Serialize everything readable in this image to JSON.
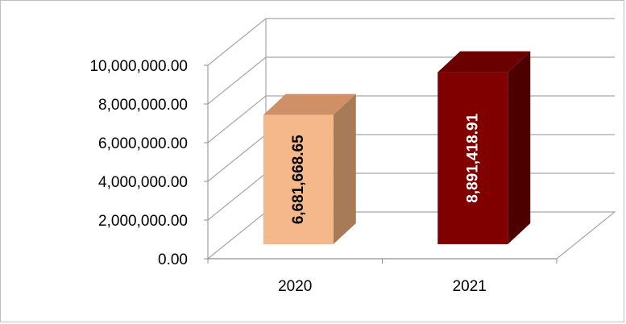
{
  "chart_data": {
    "type": "bar",
    "style": "3d-column",
    "categories": [
      "2020",
      "2021"
    ],
    "values": [
      6681668.65,
      8891418.91
    ],
    "data_labels": [
      "6,681,668.65",
      "8,891,418.91"
    ],
    "colors": {
      "bars": [
        {
          "front": "#f5b88a",
          "side": "#a77b58",
          "top": "#cf9067"
        },
        {
          "front": "#800000",
          "side": "#4d0000",
          "top": "#6b0000"
        }
      ],
      "label_text": [
        "#000000",
        "#ffffff"
      ],
      "gridlines": "#a6a6a6",
      "axis": "#8c8c8c"
    },
    "ylim": [
      0,
      10000000
    ],
    "y_ticks": [
      0,
      2000000,
      4000000,
      6000000,
      8000000,
      10000000
    ],
    "y_tick_labels": [
      "0.00",
      "2,000,000.00",
      "4,000,000.00",
      "6,000,000.00",
      "8,000,000.00",
      "10,000,000.00"
    ],
    "grid": true,
    "legend": "none",
    "title": "",
    "xlabel": "",
    "ylabel": ""
  }
}
